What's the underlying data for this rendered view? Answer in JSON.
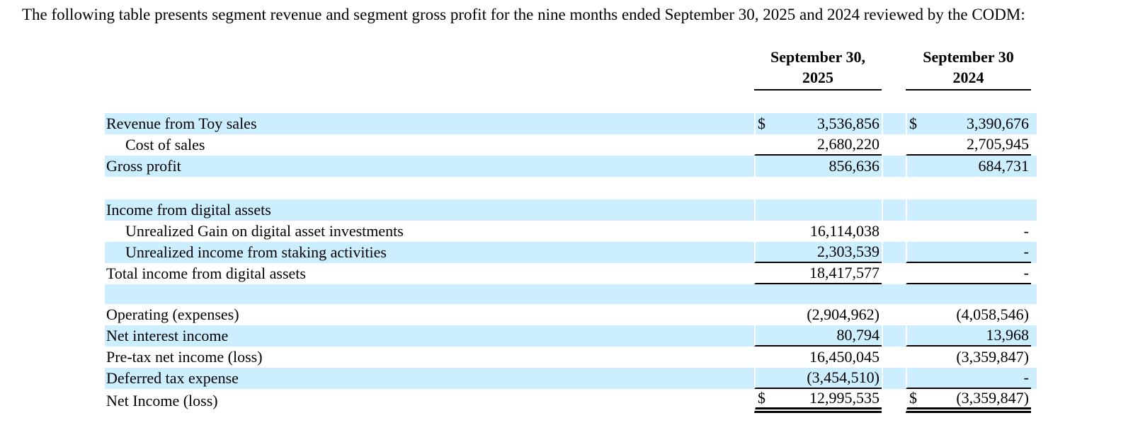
{
  "intro": "The following table presents segment revenue and segment gross profit for the nine months ended September 30, 2025 and 2024 reviewed by the CODM:",
  "colors": {
    "row_highlight": "#CCEEFF",
    "text": "#000000",
    "rule": "#000000"
  },
  "table": {
    "columns": [
      {
        "line1": "September 30,",
        "line2": "2025"
      },
      {
        "line1": "September 30",
        "line2": "2024"
      }
    ],
    "rows": [
      {
        "label": "Revenue from Toy sales",
        "indent": false,
        "highlight": true,
        "currency_2025": "$",
        "value_2025": "3,536,856",
        "currency_2024": "$",
        "value_2024": "3,390,676",
        "underline": "none"
      },
      {
        "label": "Cost of sales",
        "indent": true,
        "highlight": false,
        "currency_2025": "",
        "value_2025": "2,680,220",
        "currency_2024": "",
        "value_2024": "2,705,945",
        "underline": "single"
      },
      {
        "label": "Gross profit",
        "indent": false,
        "highlight": true,
        "currency_2025": "",
        "value_2025": "856,636",
        "currency_2024": "",
        "value_2024": "684,731",
        "underline": "none"
      },
      {
        "type": "spacer",
        "highlight": false,
        "height": 32
      },
      {
        "label": "Income from digital assets",
        "indent": false,
        "highlight": true,
        "currency_2025": "",
        "value_2025": "",
        "currency_2024": "",
        "value_2024": "",
        "underline": "none"
      },
      {
        "label": "Unrealized Gain on digital asset investments",
        "indent": true,
        "highlight": false,
        "currency_2025": "",
        "value_2025": "16,114,038",
        "currency_2024": "",
        "value_2024": "-",
        "underline": "none"
      },
      {
        "label": "Unrealized income from staking activities",
        "indent": true,
        "highlight": true,
        "currency_2025": "",
        "value_2025": "2,303,539",
        "currency_2024": "",
        "value_2024": "-",
        "underline": "single"
      },
      {
        "label": "Total income from digital assets",
        "indent": false,
        "highlight": false,
        "currency_2025": "",
        "value_2025": "18,417,577",
        "currency_2024": "",
        "value_2024": "-",
        "underline": "single"
      },
      {
        "type": "spacer",
        "highlight": true,
        "height": 28
      },
      {
        "label": "Operating (expenses)",
        "indent": false,
        "highlight": false,
        "currency_2025": "",
        "value_2025": "(2,904,962)",
        "currency_2024": "",
        "value_2024": "(4,058,546)",
        "underline": "none"
      },
      {
        "label": "Net interest income",
        "indent": false,
        "highlight": true,
        "currency_2025": "",
        "value_2025": "80,794",
        "currency_2024": "",
        "value_2024": "13,968",
        "underline": "single"
      },
      {
        "label": "Pre-tax net income (loss)",
        "indent": false,
        "highlight": false,
        "currency_2025": "",
        "value_2025": "16,450,045",
        "currency_2024": "",
        "value_2024": "(3,359,847)",
        "underline": "none"
      },
      {
        "label": "Deferred tax expense",
        "indent": false,
        "highlight": true,
        "currency_2025": "",
        "value_2025": "(3,454,510)",
        "currency_2024": "",
        "value_2024": "-",
        "underline": "single"
      },
      {
        "label": "Net Income (loss)",
        "indent": false,
        "highlight": false,
        "currency_2025": "$",
        "value_2025": "12,995,535",
        "currency_2024": "$",
        "value_2024": "(3,359,847)",
        "underline": "double"
      }
    ]
  }
}
